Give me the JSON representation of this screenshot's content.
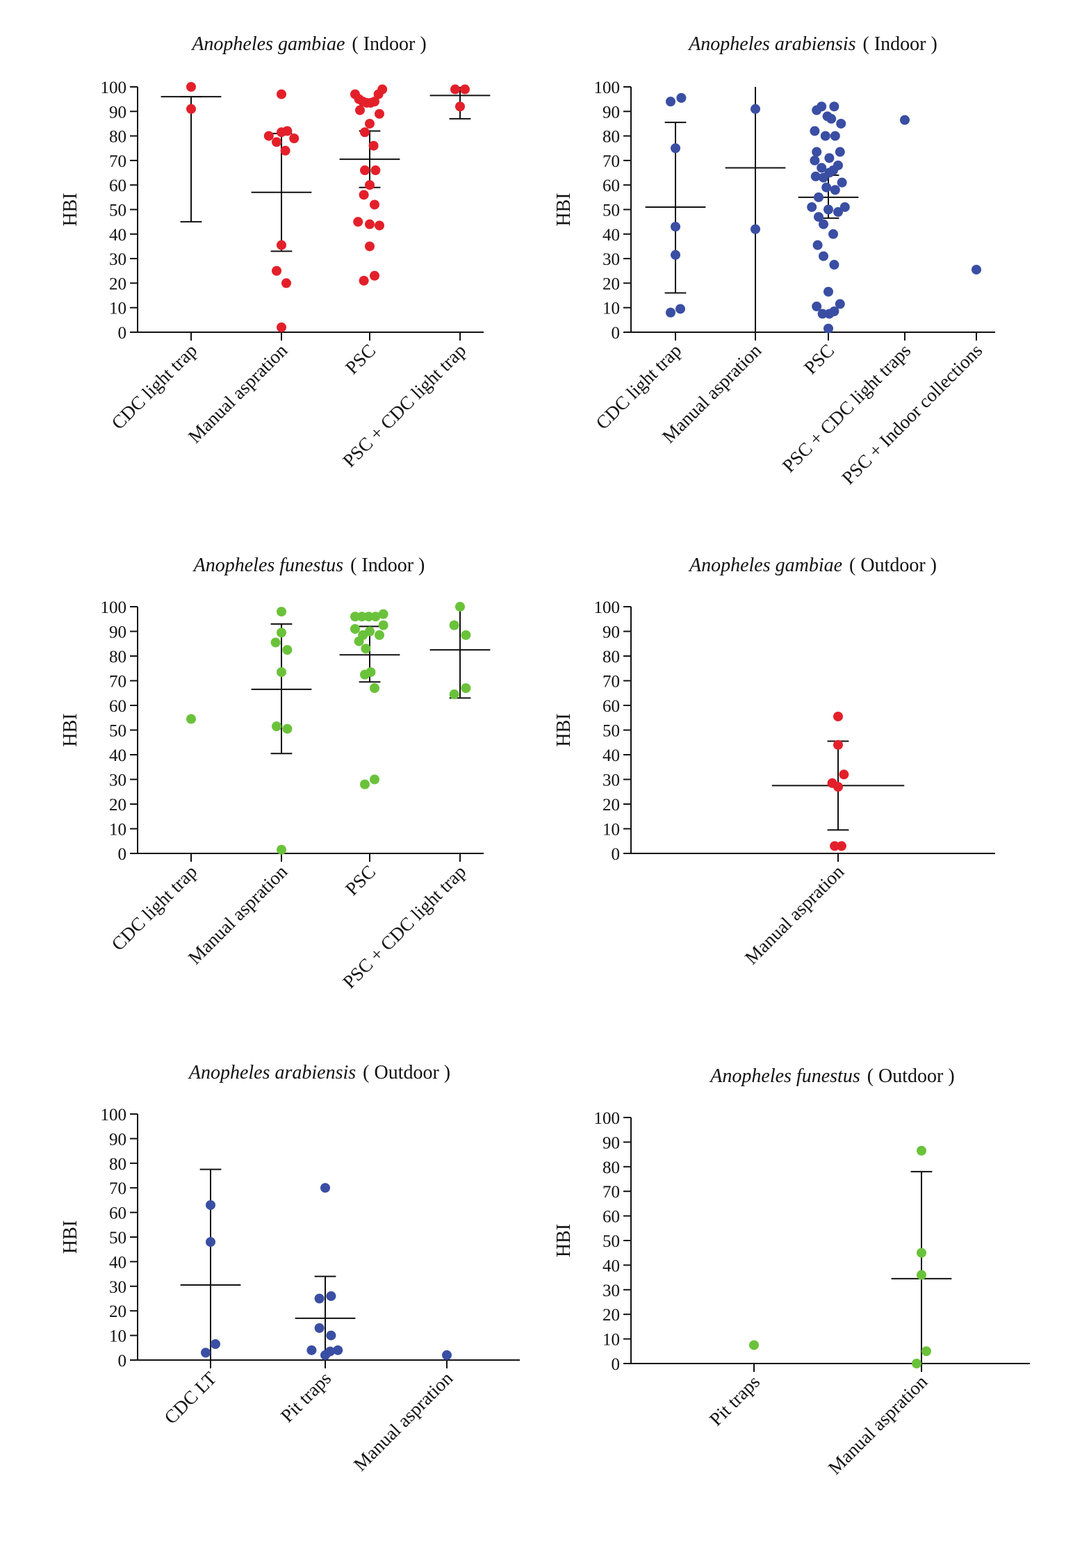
{
  "colors": {
    "red": "#e3202a",
    "blue": "#3a4ea3",
    "green": "#6ac23a",
    "axis": "#111111"
  },
  "chart_data": [
    {
      "type": "scatter",
      "title_species": "Anopheles gambiae",
      "title_rest": "( Indoor )",
      "ylabel": "HBI",
      "ylim": [
        0,
        100
      ],
      "yticks": [
        0,
        10,
        20,
        30,
        40,
        50,
        60,
        70,
        80,
        90,
        100
      ],
      "categories": [
        "CDC light trap",
        "Manual aspration",
        "PSC",
        "PSC + CDC light trap"
      ],
      "color": "red",
      "points": [
        {
          "c": 0,
          "dx": 0,
          "y": 100
        },
        {
          "c": 0,
          "dx": 0,
          "y": 91
        },
        {
          "c": 1,
          "dx": 0,
          "y": 97
        },
        {
          "c": 1,
          "dx": -0.26,
          "y": 80
        },
        {
          "c": 1,
          "dx": 0,
          "y": 81.5
        },
        {
          "c": 1,
          "dx": 0.12,
          "y": 82
        },
        {
          "c": 1,
          "dx": 0.26,
          "y": 79
        },
        {
          "c": 1,
          "dx": -0.1,
          "y": 77.5
        },
        {
          "c": 1,
          "dx": 0.08,
          "y": 74
        },
        {
          "c": 1,
          "dx": 0,
          "y": 35.5
        },
        {
          "c": 1,
          "dx": -0.1,
          "y": 25
        },
        {
          "c": 1,
          "dx": 0.1,
          "y": 20
        },
        {
          "c": 1,
          "dx": 0,
          "y": 2
        },
        {
          "c": 2,
          "dx": -0.3,
          "y": 97
        },
        {
          "c": 2,
          "dx": -0.22,
          "y": 95
        },
        {
          "c": 2,
          "dx": -0.14,
          "y": 94
        },
        {
          "c": 2,
          "dx": -0.06,
          "y": 93.5
        },
        {
          "c": 2,
          "dx": 0.02,
          "y": 93.5
        },
        {
          "c": 2,
          "dx": 0.1,
          "y": 94
        },
        {
          "c": 2,
          "dx": 0.18,
          "y": 97
        },
        {
          "c": 2,
          "dx": 0.26,
          "y": 99
        },
        {
          "c": 2,
          "dx": -0.2,
          "y": 90.5
        },
        {
          "c": 2,
          "dx": 0.2,
          "y": 89
        },
        {
          "c": 2,
          "dx": 0,
          "y": 85
        },
        {
          "c": 2,
          "dx": -0.1,
          "y": 81.5
        },
        {
          "c": 2,
          "dx": 0.08,
          "y": 76
        },
        {
          "c": 2,
          "dx": -0.1,
          "y": 66
        },
        {
          "c": 2,
          "dx": 0.12,
          "y": 66
        },
        {
          "c": 2,
          "dx": 0,
          "y": 60
        },
        {
          "c": 2,
          "dx": -0.12,
          "y": 56
        },
        {
          "c": 2,
          "dx": 0.1,
          "y": 52
        },
        {
          "c": 2,
          "dx": -0.24,
          "y": 45
        },
        {
          "c": 2,
          "dx": 0,
          "y": 44
        },
        {
          "c": 2,
          "dx": 0.2,
          "y": 43.5
        },
        {
          "c": 2,
          "dx": 0,
          "y": 35
        },
        {
          "c": 2,
          "dx": -0.12,
          "y": 21
        },
        {
          "c": 2,
          "dx": 0.1,
          "y": 23
        },
        {
          "c": 3,
          "dx": -0.1,
          "y": 99
        },
        {
          "c": 3,
          "dx": 0.1,
          "y": 99
        },
        {
          "c": 3,
          "dx": 0,
          "y": 92
        }
      ],
      "summary": [
        {
          "c": 0,
          "mean": 96,
          "lo": 45,
          "hi": 96
        },
        {
          "c": 1,
          "mean": 57,
          "lo": 33,
          "hi": 81
        },
        {
          "c": 2,
          "mean": 70.5,
          "lo": 59,
          "hi": 82
        },
        {
          "c": 3,
          "mean": 96.5,
          "lo": 87,
          "hi": 100
        }
      ]
    },
    {
      "type": "scatter",
      "title_species": "Anopheles arabiensis",
      "title_rest": "( Indoor )",
      "ylabel": "HBI",
      "ylim": [
        0,
        100
      ],
      "yticks": [
        0,
        10,
        20,
        30,
        40,
        50,
        60,
        70,
        80,
        90,
        100
      ],
      "categories": [
        "CDC light trap",
        "Manual aspration",
        "PSC",
        "PSC + CDC light traps",
        "PSC + Indoor collections"
      ],
      "color": "blue",
      "points": [
        {
          "c": 0,
          "dx": -0.1,
          "y": 94
        },
        {
          "c": 0,
          "dx": 0.12,
          "y": 95.5
        },
        {
          "c": 0,
          "dx": 0,
          "y": 75
        },
        {
          "c": 0,
          "dx": 0,
          "y": 43
        },
        {
          "c": 0,
          "dx": 0,
          "y": 31.5
        },
        {
          "c": 0,
          "dx": -0.1,
          "y": 8
        },
        {
          "c": 0,
          "dx": 0.1,
          "y": 9.5
        },
        {
          "c": 1,
          "dx": 0,
          "y": 91
        },
        {
          "c": 1,
          "dx": 0,
          "y": 42
        },
        {
          "c": 2,
          "dx": -0.24,
          "y": 90.5
        },
        {
          "c": 2,
          "dx": -0.14,
          "y": 92
        },
        {
          "c": 2,
          "dx": 0.12,
          "y": 92
        },
        {
          "c": 2,
          "dx": -0.02,
          "y": 88
        },
        {
          "c": 2,
          "dx": 0.06,
          "y": 87
        },
        {
          "c": 2,
          "dx": 0.26,
          "y": 85
        },
        {
          "c": 2,
          "dx": -0.28,
          "y": 82
        },
        {
          "c": 2,
          "dx": -0.06,
          "y": 80
        },
        {
          "c": 2,
          "dx": 0.14,
          "y": 80
        },
        {
          "c": 2,
          "dx": -0.24,
          "y": 73.5
        },
        {
          "c": 2,
          "dx": 0.24,
          "y": 73.5
        },
        {
          "c": 2,
          "dx": -0.28,
          "y": 70
        },
        {
          "c": 2,
          "dx": 0.02,
          "y": 71
        },
        {
          "c": 2,
          "dx": -0.14,
          "y": 67
        },
        {
          "c": 2,
          "dx": 0.2,
          "y": 68
        },
        {
          "c": 2,
          "dx": 0.02,
          "y": 65
        },
        {
          "c": 2,
          "dx": 0.1,
          "y": 66
        },
        {
          "c": 2,
          "dx": -0.26,
          "y": 63.5
        },
        {
          "c": 2,
          "dx": -0.1,
          "y": 63
        },
        {
          "c": 2,
          "dx": 0.28,
          "y": 61
        },
        {
          "c": 2,
          "dx": -0.04,
          "y": 59
        },
        {
          "c": 2,
          "dx": 0.14,
          "y": 58
        },
        {
          "c": 2,
          "dx": -0.2,
          "y": 55
        },
        {
          "c": 2,
          "dx": -0.34,
          "y": 51
        },
        {
          "c": 2,
          "dx": -0.2,
          "y": 47
        },
        {
          "c": 2,
          "dx": 0,
          "y": 50
        },
        {
          "c": 2,
          "dx": 0.2,
          "y": 49
        },
        {
          "c": 2,
          "dx": 0.34,
          "y": 51
        },
        {
          "c": 2,
          "dx": -0.1,
          "y": 44
        },
        {
          "c": 2,
          "dx": 0.1,
          "y": 40
        },
        {
          "c": 2,
          "dx": -0.22,
          "y": 35.5
        },
        {
          "c": 2,
          "dx": -0.1,
          "y": 31
        },
        {
          "c": 2,
          "dx": 0.12,
          "y": 27.5
        },
        {
          "c": 2,
          "dx": 0,
          "y": 16.5
        },
        {
          "c": 2,
          "dx": -0.24,
          "y": 10.5
        },
        {
          "c": 2,
          "dx": 0.24,
          "y": 11.5
        },
        {
          "c": 2,
          "dx": -0.12,
          "y": 7.5
        },
        {
          "c": 2,
          "dx": 0.02,
          "y": 7.5
        },
        {
          "c": 2,
          "dx": 0.12,
          "y": 8.5
        },
        {
          "c": 2,
          "dx": 0,
          "y": 1.5
        },
        {
          "c": 3,
          "dx": 0,
          "y": 86.5
        },
        {
          "c": 4,
          "dx": 0,
          "y": 25.5
        }
      ],
      "summary": [
        {
          "c": 0,
          "mean": 51,
          "lo": 16,
          "hi": 85.5
        },
        {
          "c": 1,
          "mean": 67,
          "lo": 0,
          "hi": 100
        },
        {
          "c": 2,
          "mean": 55,
          "lo": 46.5,
          "hi": 64
        }
      ]
    },
    {
      "type": "scatter",
      "title_species": "Anopheles funestus",
      "title_rest": "( Indoor )",
      "ylabel": "HBI",
      "ylim": [
        0,
        100
      ],
      "yticks": [
        0,
        10,
        20,
        30,
        40,
        50,
        60,
        70,
        80,
        90,
        100
      ],
      "categories": [
        "CDC light trap",
        "Manual aspration",
        "PSC",
        "PSC + CDC light trap"
      ],
      "color": "green",
      "points": [
        {
          "c": 0,
          "dx": 0,
          "y": 54.5
        },
        {
          "c": 1,
          "dx": 0,
          "y": 98
        },
        {
          "c": 1,
          "dx": 0,
          "y": 89.5
        },
        {
          "c": 1,
          "dx": -0.12,
          "y": 85.5
        },
        {
          "c": 1,
          "dx": 0.12,
          "y": 82.5
        },
        {
          "c": 1,
          "dx": 0,
          "y": 73.5
        },
        {
          "c": 1,
          "dx": -0.1,
          "y": 51.5
        },
        {
          "c": 1,
          "dx": 0.12,
          "y": 50.5
        },
        {
          "c": 1,
          "dx": 0,
          "y": 1.5
        },
        {
          "c": 2,
          "dx": -0.3,
          "y": 96
        },
        {
          "c": 2,
          "dx": -0.16,
          "y": 96
        },
        {
          "c": 2,
          "dx": -0.02,
          "y": 96
        },
        {
          "c": 2,
          "dx": 0.12,
          "y": 96
        },
        {
          "c": 2,
          "dx": 0.28,
          "y": 97
        },
        {
          "c": 2,
          "dx": -0.3,
          "y": 91
        },
        {
          "c": 2,
          "dx": 0.28,
          "y": 92.5
        },
        {
          "c": 2,
          "dx": 0,
          "y": 90
        },
        {
          "c": 2,
          "dx": -0.14,
          "y": 88.5
        },
        {
          "c": 2,
          "dx": 0.2,
          "y": 88.5
        },
        {
          "c": 2,
          "dx": -0.22,
          "y": 86
        },
        {
          "c": 2,
          "dx": -0.08,
          "y": 83
        },
        {
          "c": 2,
          "dx": 0.02,
          "y": 73.5
        },
        {
          "c": 2,
          "dx": -0.1,
          "y": 72.5
        },
        {
          "c": 2,
          "dx": 0.1,
          "y": 67
        },
        {
          "c": 2,
          "dx": -0.1,
          "y": 28
        },
        {
          "c": 2,
          "dx": 0.1,
          "y": 30
        },
        {
          "c": 3,
          "dx": 0,
          "y": 100
        },
        {
          "c": 3,
          "dx": -0.12,
          "y": 92.5
        },
        {
          "c": 3,
          "dx": 0.12,
          "y": 88.5
        },
        {
          "c": 3,
          "dx": -0.12,
          "y": 64.5
        },
        {
          "c": 3,
          "dx": 0.12,
          "y": 67
        }
      ],
      "summary": [
        {
          "c": 1,
          "mean": 66.5,
          "lo": 40.5,
          "hi": 93
        },
        {
          "c": 2,
          "mean": 80.5,
          "lo": 69.5,
          "hi": 92
        },
        {
          "c": 3,
          "mean": 82.5,
          "lo": 63,
          "hi": 100
        }
      ]
    },
    {
      "type": "scatter",
      "title_species": "Anopheles gambiae",
      "title_rest": "( Outdoor )",
      "ylabel": "HBI",
      "ylim": [
        0,
        100
      ],
      "yticks": [
        0,
        10,
        20,
        30,
        40,
        50,
        60,
        70,
        80,
        90,
        100
      ],
      "categories": [
        "Manual aspration"
      ],
      "color": "red",
      "points": [
        {
          "c": 0,
          "dx": 0,
          "y": 55.5
        },
        {
          "c": 0,
          "dx": 0,
          "y": 44
        },
        {
          "c": 0,
          "dx": 0.12,
          "y": 32
        },
        {
          "c": 0,
          "dx": -0.12,
          "y": 28.5
        },
        {
          "c": 0,
          "dx": 0,
          "y": 27
        },
        {
          "c": 0,
          "dx": -0.07,
          "y": 3
        },
        {
          "c": 0,
          "dx": 0.07,
          "y": 3
        }
      ],
      "summary": [
        {
          "c": 0,
          "mean": 27.5,
          "lo": 9.5,
          "hi": 45.5,
          "half": 1.36
        }
      ]
    },
    {
      "type": "scatter",
      "title_species": "Anopheles arabiensis",
      "title_rest": "( Outdoor )",
      "ylabel": "HBI",
      "ylim": [
        0,
        100
      ],
      "yticks": [
        0,
        10,
        20,
        30,
        40,
        50,
        60,
        70,
        80,
        90,
        100
      ],
      "categories": [
        "CDC LT",
        "Pit traps",
        "Manual aspration"
      ],
      "color": "blue",
      "points": [
        {
          "c": 0,
          "dx": 0,
          "y": 63
        },
        {
          "c": 0,
          "dx": 0,
          "y": 48
        },
        {
          "c": 0,
          "dx": -0.1,
          "y": 3
        },
        {
          "c": 0,
          "dx": 0.1,
          "y": 6.5
        },
        {
          "c": 1,
          "dx": 0,
          "y": 70
        },
        {
          "c": 1,
          "dx": -0.12,
          "y": 25
        },
        {
          "c": 1,
          "dx": 0.12,
          "y": 26
        },
        {
          "c": 1,
          "dx": -0.12,
          "y": 13
        },
        {
          "c": 1,
          "dx": 0.12,
          "y": 10
        },
        {
          "c": 1,
          "dx": -0.28,
          "y": 4
        },
        {
          "c": 1,
          "dx": 0,
          "y": 2
        },
        {
          "c": 1,
          "dx": 0.1,
          "y": 3.5
        },
        {
          "c": 1,
          "dx": 0.26,
          "y": 4
        },
        {
          "c": 2,
          "dx": 0,
          "y": 2
        }
      ],
      "summary": [
        {
          "c": 0,
          "mean": 30.5,
          "lo": 0,
          "hi": 77.5
        },
        {
          "c": 1,
          "mean": 17,
          "lo": 0,
          "hi": 34
        }
      ]
    },
    {
      "type": "scatter",
      "title_species": "Anopheles funestus",
      "title_rest": "( Outdoor )",
      "ylabel": "HBI",
      "ylim": [
        0,
        100
      ],
      "yticks": [
        0,
        10,
        20,
        30,
        40,
        50,
        60,
        70,
        80,
        90,
        100
      ],
      "categories": [
        "Pit traps",
        "Manual aspration"
      ],
      "color": "green",
      "points": [
        {
          "c": 0,
          "dx": 0,
          "y": 7.5
        },
        {
          "c": 1,
          "dx": 0,
          "y": 86.5
        },
        {
          "c": 1,
          "dx": 0,
          "y": 45
        },
        {
          "c": 1,
          "dx": 0,
          "y": 36
        },
        {
          "c": 1,
          "dx": 0.1,
          "y": 5
        },
        {
          "c": 1,
          "dx": -0.1,
          "y": 0
        }
      ],
      "summary": [
        {
          "c": 1,
          "mean": 34.5,
          "lo": 0,
          "hi": 78
        }
      ]
    }
  ]
}
